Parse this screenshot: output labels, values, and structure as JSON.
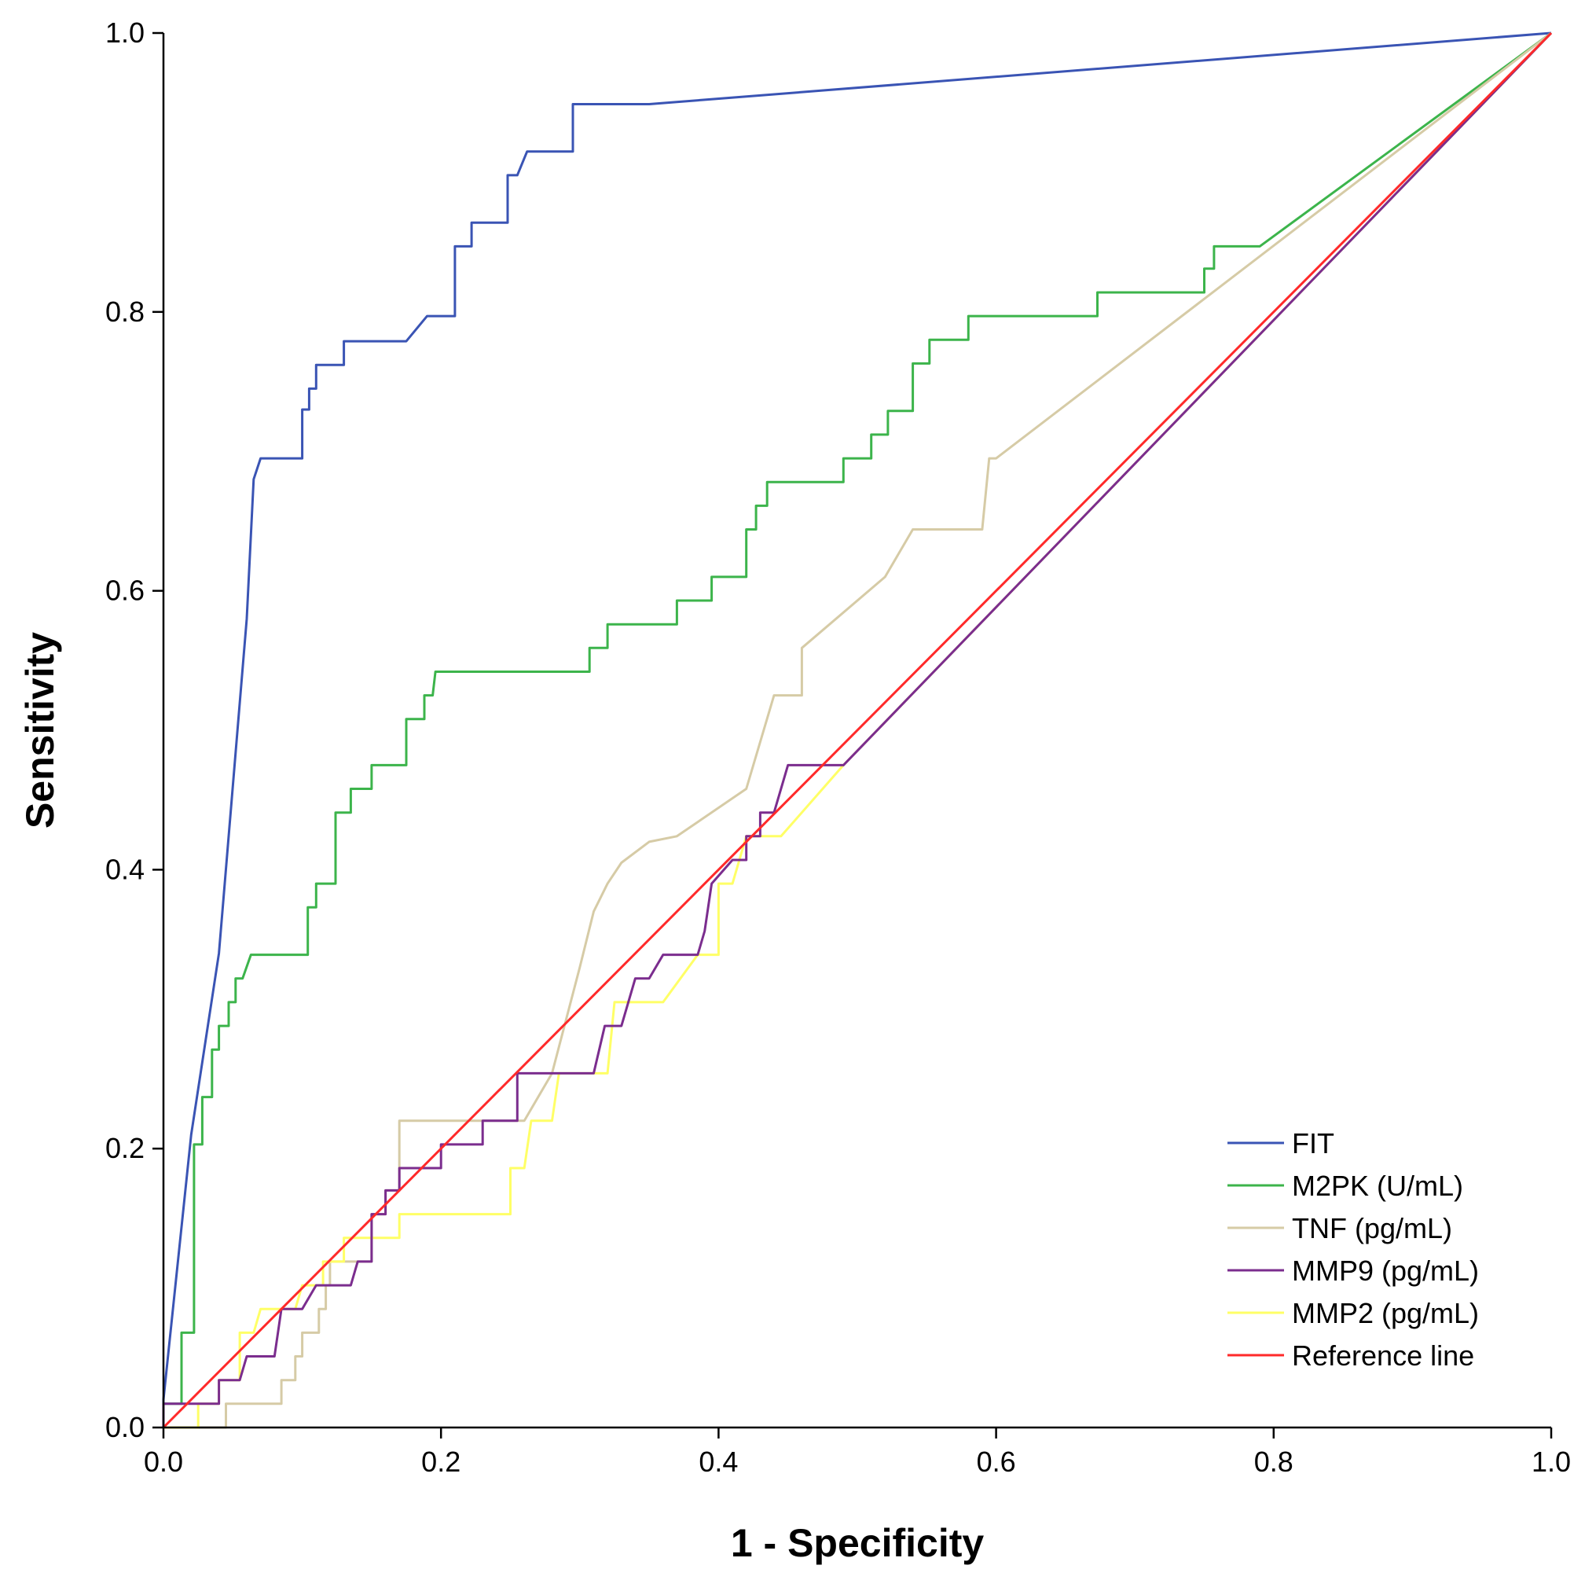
{
  "chart_data": {
    "type": "line",
    "title": "",
    "xlabel": "1 - Specificity",
    "ylabel": "Sensitivity",
    "xlim": [
      0,
      1
    ],
    "ylim": [
      0,
      1
    ],
    "x_ticks": [
      "0.0",
      "0.2",
      "0.4",
      "0.6",
      "0.8",
      "1.0"
    ],
    "y_ticks": [
      "0.0",
      "0.2",
      "0.4",
      "0.6",
      "0.8",
      "1.0"
    ],
    "grid": false,
    "legend_position": "bottom-right",
    "series": [
      {
        "name": "FIT",
        "color": "#3a54b4",
        "points": [
          [
            0,
            0
          ],
          [
            0,
            0.02
          ],
          [
            0.02,
            0.21
          ],
          [
            0.04,
            0.34
          ],
          [
            0.06,
            0.58
          ],
          [
            0.065,
            0.68
          ],
          [
            0.07,
            0.695
          ],
          [
            0.1,
            0.695
          ],
          [
            0.1,
            0.73
          ],
          [
            0.105,
            0.73
          ],
          [
            0.105,
            0.745
          ],
          [
            0.11,
            0.745
          ],
          [
            0.11,
            0.762
          ],
          [
            0.13,
            0.762
          ],
          [
            0.13,
            0.779
          ],
          [
            0.175,
            0.779
          ],
          [
            0.19,
            0.797
          ],
          [
            0.21,
            0.797
          ],
          [
            0.21,
            0.847
          ],
          [
            0.222,
            0.847
          ],
          [
            0.222,
            0.864
          ],
          [
            0.248,
            0.864
          ],
          [
            0.248,
            0.898
          ],
          [
            0.255,
            0.898
          ],
          [
            0.262,
            0.915
          ],
          [
            0.295,
            0.915
          ],
          [
            0.295,
            0.949
          ],
          [
            0.35,
            0.949
          ],
          [
            1,
            1
          ]
        ]
      },
      {
        "name": "M2PK (U/mL)",
        "color": "#3cb44b",
        "points": [
          [
            0,
            0
          ],
          [
            0,
            0.017
          ],
          [
            0.013,
            0.017
          ],
          [
            0.013,
            0.068
          ],
          [
            0.022,
            0.068
          ],
          [
            0.022,
            0.203
          ],
          [
            0.028,
            0.203
          ],
          [
            0.028,
            0.237
          ],
          [
            0.035,
            0.237
          ],
          [
            0.035,
            0.271
          ],
          [
            0.04,
            0.271
          ],
          [
            0.04,
            0.288
          ],
          [
            0.047,
            0.288
          ],
          [
            0.047,
            0.305
          ],
          [
            0.052,
            0.305
          ],
          [
            0.052,
            0.322
          ],
          [
            0.057,
            0.322
          ],
          [
            0.063,
            0.339
          ],
          [
            0.104,
            0.339
          ],
          [
            0.104,
            0.373
          ],
          [
            0.11,
            0.373
          ],
          [
            0.11,
            0.39
          ],
          [
            0.124,
            0.39
          ],
          [
            0.124,
            0.441
          ],
          [
            0.135,
            0.441
          ],
          [
            0.135,
            0.458
          ],
          [
            0.15,
            0.458
          ],
          [
            0.15,
            0.475
          ],
          [
            0.175,
            0.475
          ],
          [
            0.175,
            0.508
          ],
          [
            0.188,
            0.508
          ],
          [
            0.188,
            0.525
          ],
          [
            0.194,
            0.525
          ],
          [
            0.196,
            0.542
          ],
          [
            0.307,
            0.542
          ],
          [
            0.307,
            0.559
          ],
          [
            0.32,
            0.559
          ],
          [
            0.32,
            0.576
          ],
          [
            0.37,
            0.576
          ],
          [
            0.37,
            0.593
          ],
          [
            0.395,
            0.593
          ],
          [
            0.395,
            0.61
          ],
          [
            0.42,
            0.61
          ],
          [
            0.42,
            0.644
          ],
          [
            0.427,
            0.644
          ],
          [
            0.427,
            0.661
          ],
          [
            0.435,
            0.661
          ],
          [
            0.435,
            0.678
          ],
          [
            0.49,
            0.678
          ],
          [
            0.49,
            0.695
          ],
          [
            0.51,
            0.695
          ],
          [
            0.51,
            0.712
          ],
          [
            0.522,
            0.712
          ],
          [
            0.522,
            0.729
          ],
          [
            0.54,
            0.729
          ],
          [
            0.54,
            0.763
          ],
          [
            0.552,
            0.763
          ],
          [
            0.552,
            0.78
          ],
          [
            0.58,
            0.78
          ],
          [
            0.58,
            0.797
          ],
          [
            0.673,
            0.797
          ],
          [
            0.673,
            0.814
          ],
          [
            0.75,
            0.814
          ],
          [
            0.75,
            0.831
          ],
          [
            0.757,
            0.831
          ],
          [
            0.757,
            0.847
          ],
          [
            0.79,
            0.847
          ],
          [
            1,
            1
          ]
        ]
      },
      {
        "name": "TNF (pg/mL)",
        "color": "#d6cba6",
        "points": [
          [
            0,
            0
          ],
          [
            0.045,
            0
          ],
          [
            0.045,
            0.017
          ],
          [
            0.085,
            0.017
          ],
          [
            0.085,
            0.034
          ],
          [
            0.095,
            0.034
          ],
          [
            0.095,
            0.051
          ],
          [
            0.1,
            0.051
          ],
          [
            0.1,
            0.068
          ],
          [
            0.112,
            0.068
          ],
          [
            0.112,
            0.085
          ],
          [
            0.117,
            0.085
          ],
          [
            0.117,
            0.102
          ],
          [
            0.12,
            0.102
          ],
          [
            0.12,
            0.119
          ],
          [
            0.15,
            0.119
          ],
          [
            0.15,
            0.153
          ],
          [
            0.16,
            0.153
          ],
          [
            0.16,
            0.17
          ],
          [
            0.17,
            0.17
          ],
          [
            0.17,
            0.22
          ],
          [
            0.26,
            0.22
          ],
          [
            0.28,
            0.254
          ],
          [
            0.3,
            0.33
          ],
          [
            0.31,
            0.37
          ],
          [
            0.32,
            0.39
          ],
          [
            0.33,
            0.405
          ],
          [
            0.35,
            0.42
          ],
          [
            0.37,
            0.424
          ],
          [
            0.42,
            0.458
          ],
          [
            0.44,
            0.525
          ],
          [
            0.46,
            0.525
          ],
          [
            0.46,
            0.559
          ],
          [
            0.52,
            0.61
          ],
          [
            0.54,
            0.644
          ],
          [
            0.59,
            0.644
          ],
          [
            0.595,
            0.695
          ],
          [
            0.6,
            0.695
          ],
          [
            1,
            1
          ]
        ]
      },
      {
        "name": "MMP9 (pg/mL)",
        "color": "#7b2d8e",
        "points": [
          [
            0,
            0
          ],
          [
            0,
            0.017
          ],
          [
            0.04,
            0.017
          ],
          [
            0.04,
            0.034
          ],
          [
            0.055,
            0.034
          ],
          [
            0.06,
            0.051
          ],
          [
            0.08,
            0.051
          ],
          [
            0.085,
            0.085
          ],
          [
            0.1,
            0.085
          ],
          [
            0.11,
            0.102
          ],
          [
            0.135,
            0.102
          ],
          [
            0.14,
            0.119
          ],
          [
            0.15,
            0.119
          ],
          [
            0.15,
            0.153
          ],
          [
            0.16,
            0.153
          ],
          [
            0.16,
            0.17
          ],
          [
            0.17,
            0.17
          ],
          [
            0.17,
            0.186
          ],
          [
            0.2,
            0.186
          ],
          [
            0.2,
            0.203
          ],
          [
            0.23,
            0.203
          ],
          [
            0.23,
            0.22
          ],
          [
            0.255,
            0.22
          ],
          [
            0.255,
            0.254
          ],
          [
            0.31,
            0.254
          ],
          [
            0.318,
            0.288
          ],
          [
            0.33,
            0.288
          ],
          [
            0.34,
            0.322
          ],
          [
            0.35,
            0.322
          ],
          [
            0.36,
            0.339
          ],
          [
            0.385,
            0.339
          ],
          [
            0.39,
            0.356
          ],
          [
            0.395,
            0.39
          ],
          [
            0.41,
            0.407
          ],
          [
            0.42,
            0.407
          ],
          [
            0.42,
            0.424
          ],
          [
            0.43,
            0.424
          ],
          [
            0.43,
            0.441
          ],
          [
            0.44,
            0.441
          ],
          [
            0.45,
            0.475
          ],
          [
            0.49,
            0.475
          ],
          [
            1,
            1
          ]
        ]
      },
      {
        "name": "MMP2 (pg/mL)",
        "color": "#ffff66",
        "points": [
          [
            0,
            0
          ],
          [
            0.025,
            0
          ],
          [
            0.025,
            0.017
          ],
          [
            0.04,
            0.017
          ],
          [
            0.04,
            0.034
          ],
          [
            0.055,
            0.034
          ],
          [
            0.055,
            0.068
          ],
          [
            0.065,
            0.068
          ],
          [
            0.07,
            0.085
          ],
          [
            0.095,
            0.085
          ],
          [
            0.1,
            0.102
          ],
          [
            0.115,
            0.102
          ],
          [
            0.115,
            0.119
          ],
          [
            0.13,
            0.119
          ],
          [
            0.13,
            0.136
          ],
          [
            0.17,
            0.136
          ],
          [
            0.17,
            0.153
          ],
          [
            0.25,
            0.153
          ],
          [
            0.25,
            0.186
          ],
          [
            0.26,
            0.186
          ],
          [
            0.265,
            0.22
          ],
          [
            0.28,
            0.22
          ],
          [
            0.285,
            0.254
          ],
          [
            0.32,
            0.254
          ],
          [
            0.325,
            0.305
          ],
          [
            0.36,
            0.305
          ],
          [
            0.385,
            0.339
          ],
          [
            0.4,
            0.339
          ],
          [
            0.4,
            0.39
          ],
          [
            0.41,
            0.39
          ],
          [
            0.42,
            0.424
          ],
          [
            0.445,
            0.424
          ],
          [
            0.49,
            0.475
          ],
          [
            1,
            1
          ]
        ]
      },
      {
        "name": "Reference line",
        "color": "#ff2a2a",
        "points": [
          [
            0,
            0
          ],
          [
            1,
            1
          ]
        ]
      }
    ]
  }
}
